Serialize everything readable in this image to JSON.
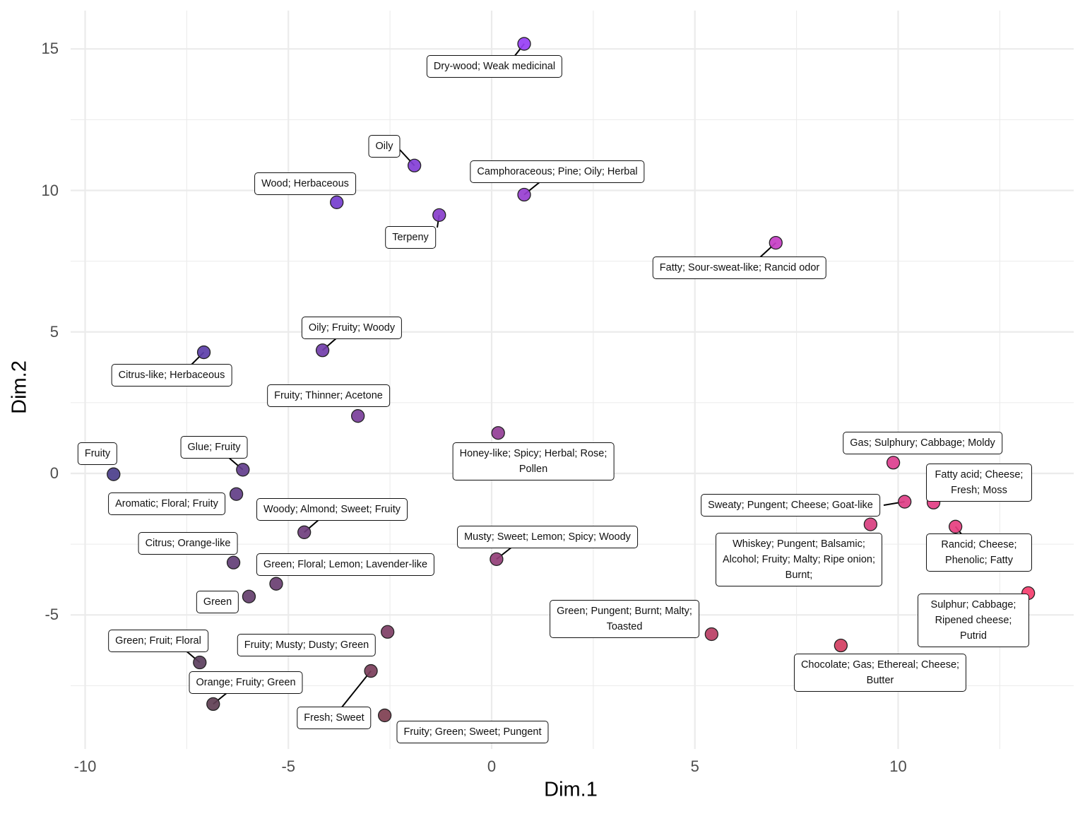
{
  "chart_data": {
    "type": "scatter",
    "title": "",
    "xlabel": "Dim.1",
    "ylabel": "Dim.2",
    "xlim": [
      -10.4,
      14.3
    ],
    "ylim": [
      -9.7,
      16.3
    ],
    "xticks": [
      -10,
      -5,
      0,
      5,
      10
    ],
    "yticks": [
      -5,
      0,
      5,
      10,
      15
    ],
    "xtick_labels": [
      "-10",
      "-5",
      "0",
      "5",
      "10"
    ],
    "ytick_labels": [
      "-5",
      "0",
      "5",
      "10",
      "15"
    ],
    "grid": true,
    "legend": "none",
    "color_low": "#4b3c87",
    "color_high_x": "#f04560",
    "color_high_y": "#7b3ff0",
    "points": [
      {
        "x": 0.8,
        "y": 15.18,
        "label": "Dry-wood; Weak medicinal"
      },
      {
        "x": -1.9,
        "y": 10.88,
        "label": "Oily"
      },
      {
        "x": 0.8,
        "y": 9.85,
        "label": "Camphoraceous; Pine; Oily; Herbal"
      },
      {
        "x": -3.81,
        "y": 9.58,
        "label": "Wood; Herbaceous"
      },
      {
        "x": -1.29,
        "y": 9.13,
        "label": "Terpeny"
      },
      {
        "x": 6.99,
        "y": 8.15,
        "label": "Fatty; Sour-sweat-like; Rancid odor"
      },
      {
        "x": -7.08,
        "y": 4.28,
        "label": "Citrus-like; Herbaceous"
      },
      {
        "x": -4.16,
        "y": 4.35,
        "label": "Oily; Fruity; Woody"
      },
      {
        "x": -3.29,
        "y": 2.03,
        "label": "Fruity; Thinner; Acetone"
      },
      {
        "x": 0.16,
        "y": 1.43,
        "label": "Honey-like; Spicy; Herbal; Rose;\nPollen"
      },
      {
        "x": -9.3,
        "y": -0.03,
        "label": "Fruity"
      },
      {
        "x": -6.12,
        "y": 0.13,
        "label": "Glue; Fruity"
      },
      {
        "x": -6.28,
        "y": -0.73,
        "label": "Aromatic; Floral; Fruity"
      },
      {
        "x": -4.61,
        "y": -2.08,
        "label": "Woody; Almond; Sweet; Fruity"
      },
      {
        "x": 0.12,
        "y": -3.03,
        "label": "Musty; Sweet; Lemon; Spicy; Woody"
      },
      {
        "x": -6.35,
        "y": -3.15,
        "label": "Citrus; Orange-like"
      },
      {
        "x": -5.3,
        "y": -3.9,
        "label": "Green; Floral; Lemon; Lavender-like"
      },
      {
        "x": -5.97,
        "y": -4.35,
        "label": "Green"
      },
      {
        "x": -2.56,
        "y": -5.6,
        "label": "Fruity; Musty; Dusty; Green"
      },
      {
        "x": -7.18,
        "y": -6.68,
        "label": "Green; Fruit; Floral"
      },
      {
        "x": -2.97,
        "y": -6.98,
        "label": "Fresh; Sweet"
      },
      {
        "x": -6.85,
        "y": -8.15,
        "label": "Orange; Fruity; Green"
      },
      {
        "x": -2.63,
        "y": -8.55,
        "label": "Fruity; Green; Sweet; Pungent"
      },
      {
        "x": 9.88,
        "y": 0.38,
        "label": "Gas; Sulphury; Cabbage; Moldy"
      },
      {
        "x": 10.16,
        "y": -1.0,
        "label": "Sweaty; Pungent; Cheese; Goat-like"
      },
      {
        "x": 10.87,
        "y": -1.03,
        "label": "Fatty acid; Cheese; Fresh; Moss"
      },
      {
        "x": 9.32,
        "y": -1.8,
        "label": "Whiskey; Pungent; Balsamic;\nAlcohol; Fruity; Malty; Ripe onion;\nBurnt;"
      },
      {
        "x": 11.41,
        "y": -1.88,
        "label": "Rancid; Cheese; Phenolic; Fatty"
      },
      {
        "x": 13.2,
        "y": -4.23,
        "label": "Sulphur; Cabbage; Ripened cheese;\nPutrid"
      },
      {
        "x": 5.41,
        "y": -5.68,
        "label": "Green; Pungent; Burnt; Malty;\nToasted"
      },
      {
        "x": 8.59,
        "y": -6.08,
        "label": "Chocolate; Gas; Ethereal; Cheese;\nButter"
      }
    ]
  }
}
